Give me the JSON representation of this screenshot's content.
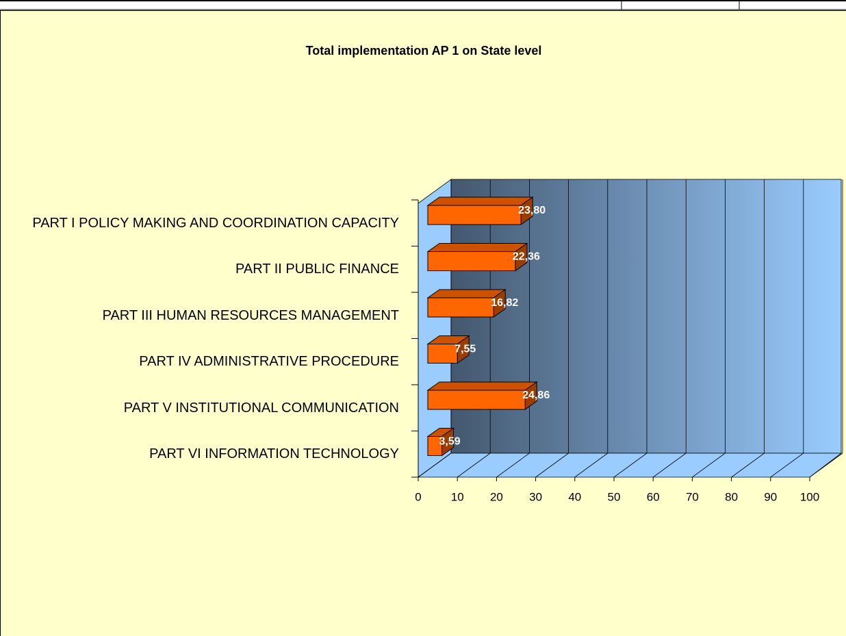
{
  "chart_data": {
    "type": "bar3d_horizontal",
    "title": "Total implementation AP 1 on State level",
    "categories": [
      "PART I POLICY MAKING AND COORDINATION CAPACITY",
      "PART II PUBLIC FINANCE",
      "PART III HUMAN RESOURCES MANAGEMENT",
      "PART IV ADMINISTRATIVE PROCEDURE",
      "PART V INSTITUTIONAL COMMUNICATION",
      "PART VI INFORMATION TECHNOLOGY"
    ],
    "values": [
      23.8,
      22.36,
      16.82,
      7.55,
      24.86,
      3.59
    ],
    "value_labels": [
      "23,80",
      "22,36",
      "16,82",
      "7,55",
      "24,86",
      "3,59"
    ],
    "color": "#ff6600",
    "xlim": [
      0,
      100
    ],
    "xticks": [
      0,
      10,
      20,
      30,
      40,
      50,
      60,
      70,
      80,
      90,
      100
    ],
    "grid": true
  }
}
